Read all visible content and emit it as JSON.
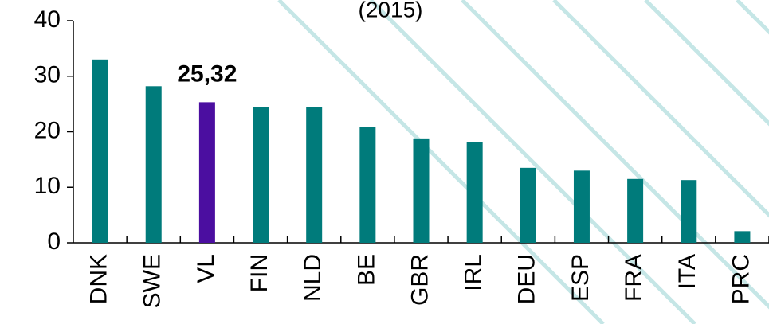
{
  "chart_data": {
    "type": "bar",
    "title": "(2015)",
    "categories": [
      "DNK",
      "SWE",
      "VL",
      "FIN",
      "NLD",
      "BE",
      "GBR",
      "IRL",
      "DEU",
      "ESP",
      "FRA",
      "ITA",
      "PRC"
    ],
    "values": [
      33.0,
      28.2,
      25.32,
      24.5,
      24.4,
      20.8,
      18.8,
      18.1,
      13.5,
      13.0,
      11.5,
      11.3,
      2.1
    ],
    "value_labels": [
      null,
      null,
      "25,32",
      null,
      null,
      null,
      null,
      null,
      null,
      null,
      null,
      null,
      null
    ],
    "colors": [
      "#007b7b",
      "#007b7b",
      "#4b0ea0",
      "#007b7b",
      "#007b7b",
      "#007b7b",
      "#007b7b",
      "#007b7b",
      "#007b7b",
      "#007b7b",
      "#007b7b",
      "#007b7b",
      "#007b7b"
    ],
    "ylim": [
      0,
      40
    ],
    "yticks": [
      0,
      10,
      20,
      30,
      40
    ],
    "grid": false
  }
}
